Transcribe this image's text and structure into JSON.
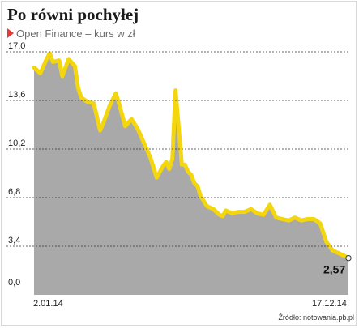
{
  "header": {
    "title": "Po równi pochyłej",
    "subtitle": "Open Finance – kurs w zł"
  },
  "footer": {
    "source": "Źródło: notowania.pb.pl"
  },
  "colors": {
    "area": "#a9a9a9",
    "line": "#f4d60f",
    "marker": "#e53935"
  },
  "chart_data": {
    "type": "area",
    "title": "Po równi pochyłej",
    "subtitle": "Open Finance – kurs w zł",
    "xlabel": "",
    "ylabel": "",
    "ylim": [
      0,
      17
    ],
    "y_ticks": [
      "17,0",
      "13,6",
      "10,2",
      "6,8",
      "3,4",
      "0,0"
    ],
    "y_tick_values": [
      17,
      13.6,
      10.2,
      6.8,
      3.4,
      0
    ],
    "x_ticks": [
      "2.01.14",
      "17.12.14"
    ],
    "grid": true,
    "last_value_label": "2,57",
    "x": [
      0,
      0.02,
      0.04,
      0.05,
      0.06,
      0.08,
      0.09,
      0.11,
      0.13,
      0.14,
      0.15,
      0.17,
      0.19,
      0.21,
      0.22,
      0.24,
      0.26,
      0.27,
      0.29,
      0.31,
      0.33,
      0.35,
      0.37,
      0.39,
      0.41,
      0.42,
      0.43,
      0.44,
      0.45,
      0.47,
      0.48,
      0.49,
      0.5,
      0.51,
      0.52,
      0.53,
      0.55,
      0.57,
      0.59,
      0.6,
      0.61,
      0.63,
      0.65,
      0.67,
      0.69,
      0.71,
      0.73,
      0.75,
      0.77,
      0.79,
      0.81,
      0.83,
      0.85,
      0.87,
      0.89,
      0.91,
      0.93,
      0.95,
      0.97,
      0.99,
      1.0
    ],
    "values": [
      15.9,
      15.5,
      16.5,
      16.9,
      16.3,
      16.4,
      15.3,
      16.5,
      16.0,
      14.5,
      13.8,
      13.5,
      13.4,
      11.5,
      12.0,
      13.2,
      14.1,
      13.4,
      11.8,
      12.3,
      11.6,
      10.6,
      9.6,
      8.2,
      9.0,
      9.3,
      8.8,
      9.5,
      14.3,
      9.1,
      9.1,
      8.6,
      8.4,
      7.8,
      7.6,
      6.9,
      6.2,
      6.0,
      5.6,
      5.5,
      5.9,
      5.7,
      5.8,
      5.8,
      6.0,
      5.7,
      5.6,
      6.3,
      5.4,
      5.3,
      5.2,
      5.4,
      5.2,
      5.3,
      5.3,
      5.0,
      3.7,
      3.1,
      2.9,
      2.7,
      2.57
    ]
  }
}
